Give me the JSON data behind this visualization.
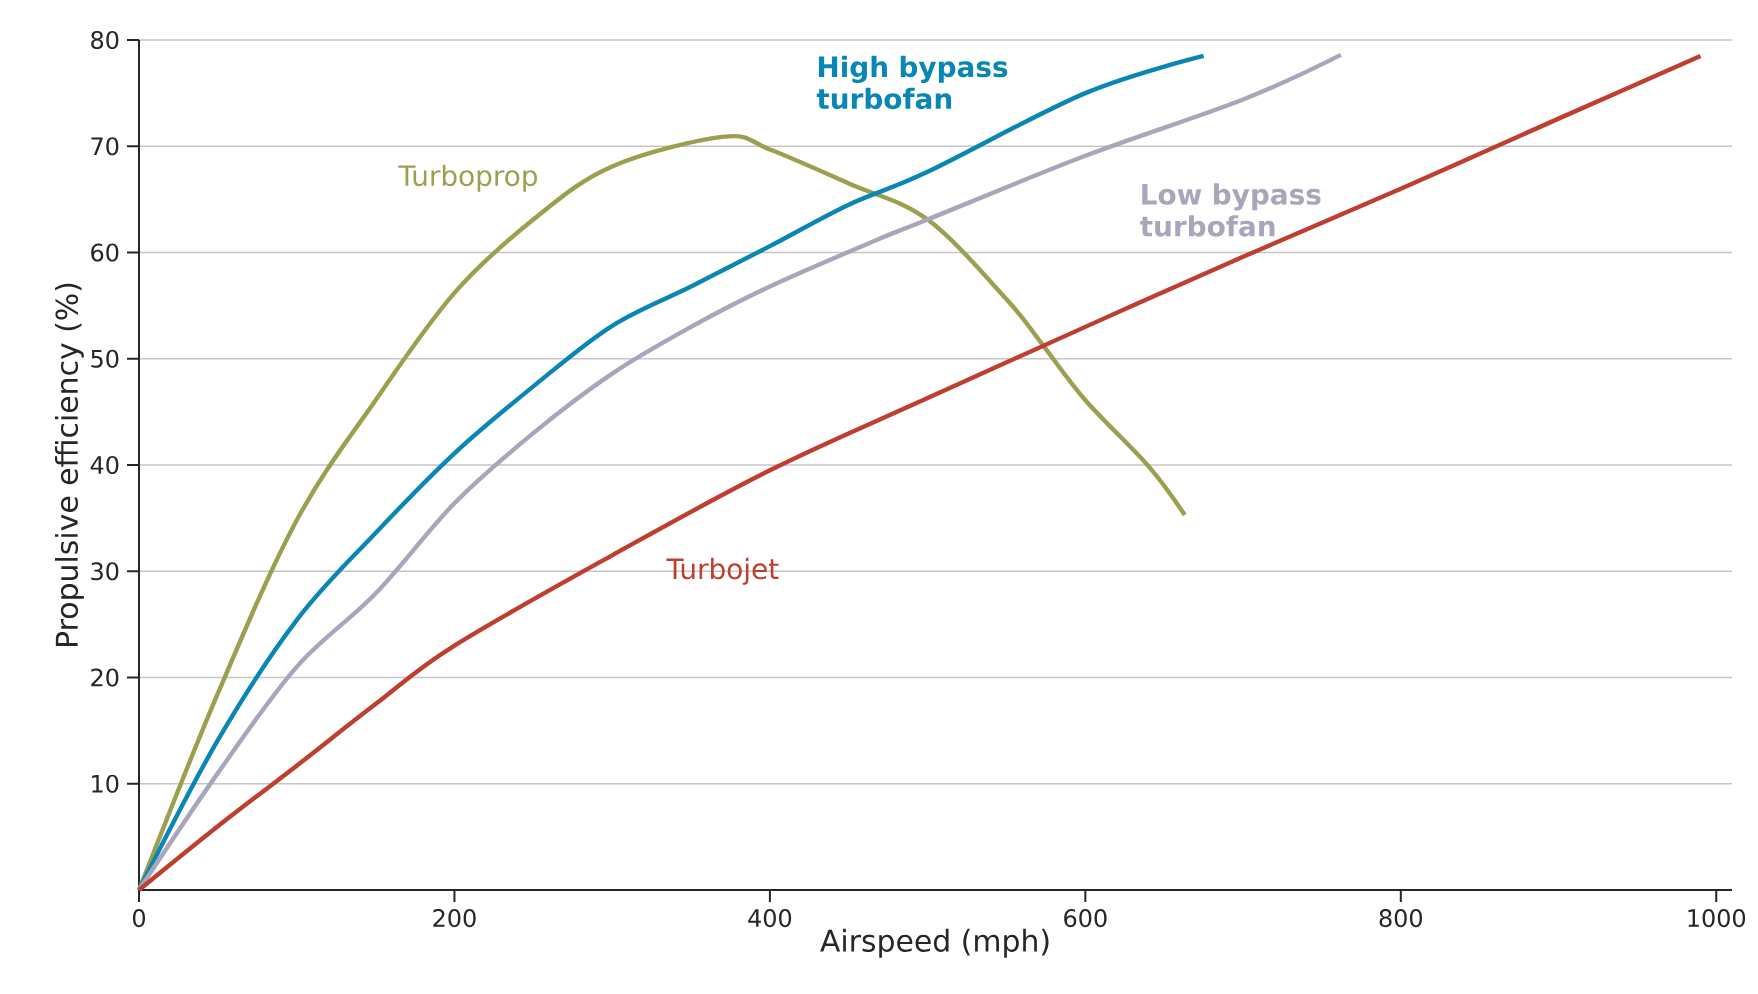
{
  "chart_data": {
    "type": "line",
    "xlabel": "Airspeed (mph)",
    "ylabel": "Propulsive efficiency (%)",
    "xlim": [
      0,
      1010
    ],
    "ylim": [
      0,
      80
    ],
    "xticks": [
      0,
      200,
      400,
      600,
      800,
      1000
    ],
    "yticks": [
      10,
      20,
      30,
      40,
      50,
      60,
      70,
      80
    ],
    "grid": "y",
    "legend": false,
    "marker": "none",
    "line_style": "solid",
    "series": [
      {
        "name": "Turboprop",
        "color": "#9c9f4f",
        "x": [
          0,
          50,
          100,
          150,
          200,
          250,
          300,
          371,
          400,
          450,
          500,
          550,
          572,
          600,
          640,
          663
        ],
        "values": [
          0,
          18.5,
          34.8,
          46.1,
          56.2,
          63.1,
          68.1,
          70.9,
          69.7,
          66.5,
          63.1,
          55.6,
          51.5,
          46.1,
          39.9,
          35.3
        ]
      },
      {
        "name": "High bypass turbofan",
        "color": "#0a86b4",
        "x": [
          0,
          50,
          100,
          150,
          200,
          250,
          300,
          350,
          400,
          450,
          500,
          600,
          675
        ],
        "values": [
          0,
          14.1,
          25.4,
          33.6,
          41.1,
          47.4,
          53.1,
          56.8,
          60.6,
          64.5,
          67.6,
          75.0,
          78.5
        ]
      },
      {
        "name": "Low bypass turbofan",
        "color": "#a9a6bb",
        "x": [
          0,
          50,
          100,
          150,
          200,
          250,
          300,
          350,
          400,
          468,
          500,
          600,
          700,
          762
        ],
        "values": [
          0,
          11.0,
          21.0,
          27.9,
          36.4,
          43.0,
          48.6,
          53.0,
          56.8,
          61.2,
          63.1,
          69.1,
          74.4,
          78.6
        ]
      },
      {
        "name": "Turbojet",
        "color": "#be3f2f",
        "x": [
          0,
          50,
          100,
          150,
          200,
          300,
          400,
          500,
          600,
          700,
          800,
          900,
          990
        ],
        "values": [
          0,
          6,
          11.7,
          17.5,
          23,
          31.5,
          39.5,
          46.3,
          53,
          59.6,
          66,
          72.6,
          78.5
        ]
      }
    ]
  }
}
